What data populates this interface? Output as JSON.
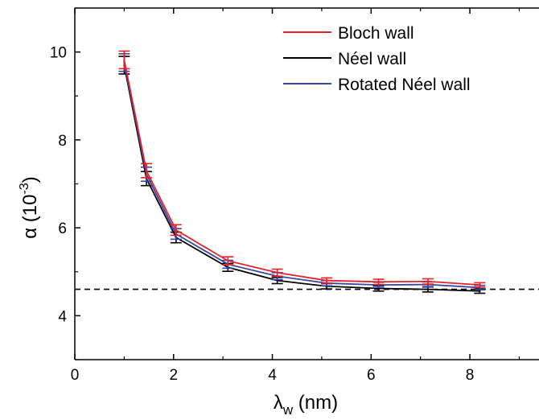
{
  "chart_data": {
    "type": "line",
    "xlabel": {
      "symbol": "λ",
      "subscript": "w",
      "unit": " (nm)"
    },
    "ylabel": {
      "symbol": "α",
      "unit_prefix": " (10",
      "superscript": "-3",
      "unit_suffix": ")"
    },
    "xlim": [
      0,
      9.4
    ],
    "ylim": [
      3.0,
      11.0
    ],
    "xticks": [
      0,
      2,
      4,
      6,
      8
    ],
    "xtick_labels": [
      "0",
      "2",
      "4",
      "6",
      "8"
    ],
    "yticks": [
      4,
      6,
      8,
      10
    ],
    "ytick_labels": [
      "4",
      "6",
      "8",
      "10"
    ],
    "legend_position": "top-right",
    "grid": false,
    "reference_line": {
      "y": 4.6,
      "style": "dashed",
      "color": "#000000"
    },
    "x": [
      1.0,
      1.45,
      2.05,
      3.1,
      4.1,
      5.1,
      6.15,
      7.15,
      8.2
    ],
    "series": [
      {
        "name": "Bloch wall",
        "color": "#e8202a",
        "values": [
          9.82,
          7.3,
          5.95,
          5.25,
          4.98,
          4.8,
          4.77,
          4.78,
          4.7
        ],
        "errors": [
          0.2,
          0.16,
          0.12,
          0.09,
          0.08,
          0.06,
          0.06,
          0.06,
          0.05
        ]
      },
      {
        "name": "Néel wall",
        "color": "#000000",
        "values": [
          9.7,
          7.12,
          5.78,
          5.1,
          4.8,
          4.67,
          4.62,
          4.6,
          4.56
        ],
        "errors": [
          0.2,
          0.16,
          0.12,
          0.09,
          0.07,
          0.06,
          0.06,
          0.06,
          0.05
        ]
      },
      {
        "name": "Rotated Néel wall",
        "color": "#3546a8",
        "values": [
          9.76,
          7.22,
          5.86,
          5.17,
          4.9,
          4.74,
          4.7,
          4.71,
          4.64
        ],
        "errors": [
          0.2,
          0.16,
          0.12,
          0.09,
          0.08,
          0.06,
          0.06,
          0.06,
          0.05
        ]
      }
    ]
  }
}
